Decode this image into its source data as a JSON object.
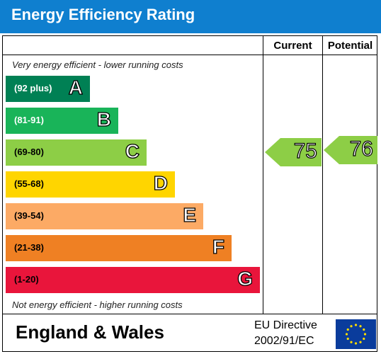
{
  "title": "Energy Efficiency Rating",
  "columns": {
    "current": "Current",
    "potential": "Potential"
  },
  "notes": {
    "top": "Very energy efficient - lower running costs",
    "bottom": "Not energy efficient - higher running costs"
  },
  "footer": {
    "region": "England & Wales",
    "directive_line1": "EU Directive",
    "directive_line2": "2002/91/EC"
  },
  "chart_data": {
    "type": "bar",
    "title": "Energy Efficiency Rating",
    "categories": [
      "A",
      "B",
      "C",
      "D",
      "E",
      "F",
      "G"
    ],
    "ranges": [
      "(92 plus)",
      "(81-91)",
      "(69-80)",
      "(55-68)",
      "(39-54)",
      "(21-38)",
      "(1-20)"
    ],
    "colors": [
      "#008054",
      "#19b459",
      "#8dce46",
      "#ffd500",
      "#fcaa65",
      "#ef8023",
      "#e9153b"
    ],
    "range_text_colors": [
      "#ffffff",
      "#ffffff",
      "#000000",
      "#000000",
      "#000000",
      "#000000",
      "#000000"
    ],
    "current": 75,
    "potential": 76,
    "current_band": "C",
    "potential_band": "C"
  }
}
